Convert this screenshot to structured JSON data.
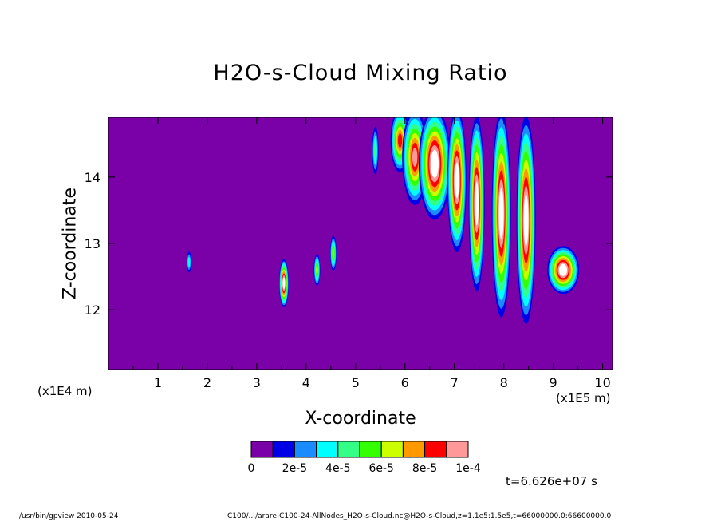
{
  "chart_data": {
    "type": "contour",
    "title": "H2O-s-Cloud Mixing Ratio",
    "xlabel": "X-coordinate",
    "ylabel": "Z-coordinate",
    "x_unit": "(x1E5 m)",
    "y_unit": "(x1E4 m)",
    "xlim": [
      0,
      10.2
    ],
    "ylim": [
      11.1,
      14.9
    ],
    "x_ticks": [
      "1",
      "2",
      "3",
      "4",
      "5",
      "6",
      "7",
      "8",
      "9",
      "10"
    ],
    "y_ticks": [
      "12",
      "13",
      "14"
    ],
    "colorbar": {
      "levels": [
        0,
        1e-05,
        2e-05,
        3e-05,
        4e-05,
        5e-05,
        6e-05,
        7e-05,
        8e-05,
        9e-05,
        0.0001
      ],
      "labels": [
        "0",
        "2e-5",
        "4e-5",
        "6e-5",
        "8e-5",
        "1e-4"
      ],
      "colors": [
        "#7a00a8",
        "#0000e6",
        "#1a8cff",
        "#00ffff",
        "#33ff88",
        "#33ff00",
        "#ccff00",
        "#ff9900",
        "#ff0000",
        "#ff9999"
      ],
      "over_color": "#ffffff"
    },
    "background_color": "#7a00a8",
    "features": [
      {
        "x": 1.63,
        "z": 12.72,
        "peak": 3.5e-05
      },
      {
        "x": 3.55,
        "z": 12.4,
        "peak": 0.00012
      },
      {
        "x": 4.22,
        "z": 12.6,
        "peak": 6e-05
      },
      {
        "x": 4.55,
        "z": 12.85,
        "peak": 6e-05
      },
      {
        "x": 5.4,
        "z": 14.4,
        "peak": 4e-05
      },
      {
        "x": 5.9,
        "z": 14.55,
        "peak": 8e-05
      },
      {
        "x": 6.2,
        "z": 14.3,
        "peak": 9e-05
      },
      {
        "x": 6.6,
        "z": 14.2,
        "peak": 0.0001
      },
      {
        "x": 7.05,
        "z": 13.95,
        "peak": 0.0001
      },
      {
        "x": 7.45,
        "z": 13.6,
        "peak": 0.00011
      },
      {
        "x": 7.95,
        "z": 13.45,
        "peak": 0.00013
      },
      {
        "x": 8.45,
        "z": 13.35,
        "peak": 0.00013
      },
      {
        "x": 9.2,
        "z": 12.6,
        "peak": 0.0001
      }
    ],
    "time": "t=6.626e+07 s"
  },
  "footer": {
    "left": "/usr/bin/gpview  2010-05-24",
    "right": "C100/.../arare-C100-24-AllNodes_H2O-s-Cloud.nc@H2O-s-Cloud,z=1.1e5:1.5e5,t=66000000.0:66600000.0"
  }
}
